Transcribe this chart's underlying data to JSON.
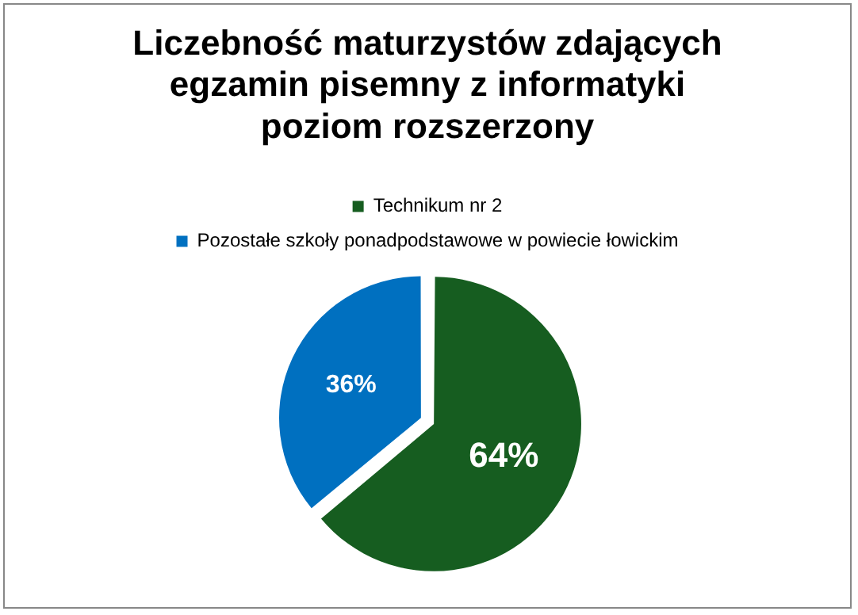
{
  "chart_data": {
    "type": "pie",
    "title": "Liczebność maturzystów zdających\negzamin pisemny z informatyki\npoziom rozszerzony",
    "categories": [
      "Technikum nr 2",
      "Pozostałe szkoły ponadpodstawowe w powiecie łowickim"
    ],
    "values": [
      64,
      36
    ],
    "colors": [
      "#165d20",
      "#0070c0"
    ],
    "value_labels": [
      "64%",
      "36%"
    ],
    "legend": "top"
  }
}
